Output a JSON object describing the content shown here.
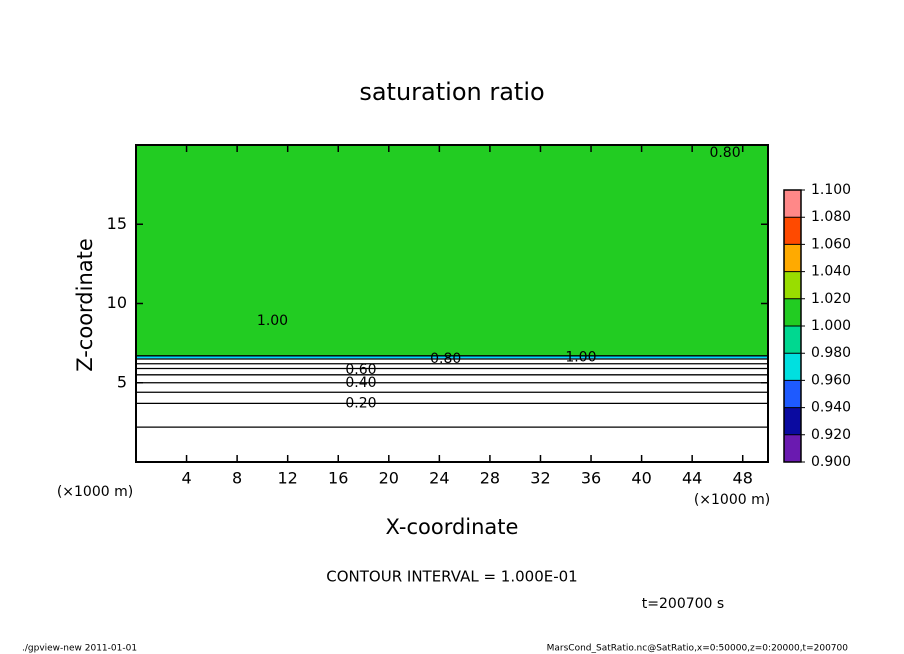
{
  "chart_data": {
    "type": "contour",
    "title": "saturation ratio",
    "xlabel": "X-coordinate",
    "ylabel": "Z-coordinate",
    "xunit": "(×1000 m)",
    "yunit": "(×1000 m)",
    "xlim": [
      0,
      50
    ],
    "ylim": [
      0,
      20
    ],
    "xticks": [
      4,
      8,
      12,
      16,
      20,
      24,
      28,
      32,
      36,
      40,
      44,
      48
    ],
    "yticks": [
      5,
      10,
      15
    ],
    "fill": [
      {
        "color": "#22cc22",
        "zlim": [
          6.6,
          20
        ]
      }
    ],
    "contours": [
      {
        "level": 0.1,
        "z": 2.2
      },
      {
        "level": 0.2,
        "z": 3.7
      },
      {
        "level": 0.3,
        "z": 4.4
      },
      {
        "level": 0.4,
        "z": 5.0
      },
      {
        "level": 0.5,
        "z": 5.5
      },
      {
        "level": 0.6,
        "z": 5.9
      },
      {
        "level": 0.7,
        "z": 6.2
      },
      {
        "level": 0.8,
        "z": 6.5
      },
      {
        "level": 0.9,
        "z": 6.7
      }
    ],
    "contour_labels": [
      {
        "text": "0.20",
        "x": 17.8,
        "z": 3.7
      },
      {
        "text": "0.40",
        "x": 17.8,
        "z": 5.0
      },
      {
        "text": "0.60",
        "x": 17.8,
        "z": 5.8
      },
      {
        "text": "0.80",
        "x": 24.5,
        "z": 6.5
      },
      {
        "text": "1.00",
        "x": 35.2,
        "z": 6.6
      },
      {
        "text": "1.00",
        "x": 10.8,
        "z": 8.9
      },
      {
        "text": "0.80",
        "x": 46.6,
        "z": 19.5
      }
    ],
    "colorbar": {
      "colors": [
        "#6a1ab0",
        "#0a0aa0",
        "#1e5aff",
        "#00e0e0",
        "#00d890",
        "#22cc22",
        "#99dd00",
        "#ffaa00",
        "#ff4a00",
        "#ff8888"
      ],
      "ticks": [
        {
          "value": 0.9,
          "label": "0.900"
        },
        {
          "value": 0.92,
          "label": "0.920"
        },
        {
          "value": 0.94,
          "label": "0.940"
        },
        {
          "value": 0.96,
          "label": "0.960"
        },
        {
          "value": 0.98,
          "label": "0.980"
        },
        {
          "value": 1.0,
          "label": "1.000"
        },
        {
          "value": 1.02,
          "label": "1.020"
        },
        {
          "value": 1.04,
          "label": "1.040"
        },
        {
          "value": 1.06,
          "label": "1.060"
        },
        {
          "value": 1.08,
          "label": "1.080"
        },
        {
          "value": 1.1,
          "label": "1.100"
        }
      ]
    },
    "annotation": "CONTOUR INTERVAL = 1.000E-01",
    "time_label": "t=200700 s",
    "footer_left": "./gpview-new  2011-01-01",
    "footer_right": "MarsCond_SatRatio.nc@SatRatio,x=0:50000,z=0:20000,t=200700"
  }
}
